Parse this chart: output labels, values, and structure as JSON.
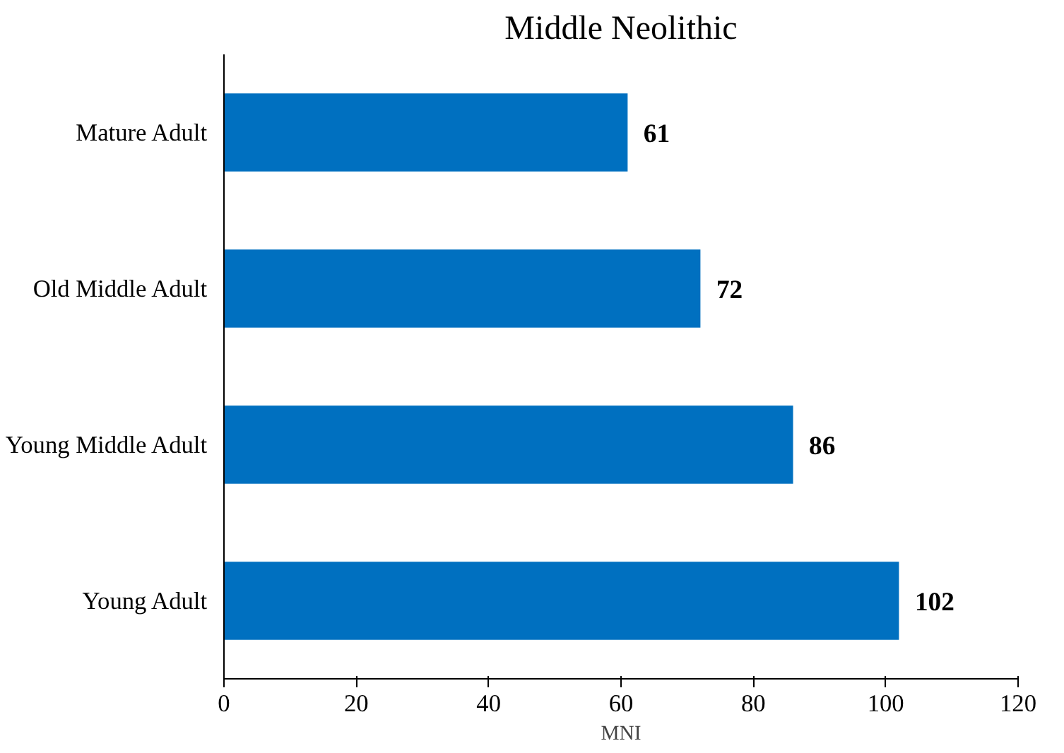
{
  "chart_data": {
    "type": "bar",
    "orientation": "horizontal",
    "title": "Middle Neolithic",
    "xlabel": "MNI",
    "categories": [
      "Mature Adult",
      "Old Middle Adult",
      "Young Middle Adult",
      "Young Adult"
    ],
    "values": [
      61,
      72,
      86,
      102
    ],
    "color": "#0070c0",
    "xlim": [
      0,
      120
    ],
    "xticks": [
      0,
      20,
      40,
      60,
      80,
      100,
      120
    ],
    "grid": false,
    "data_labels": true
  }
}
